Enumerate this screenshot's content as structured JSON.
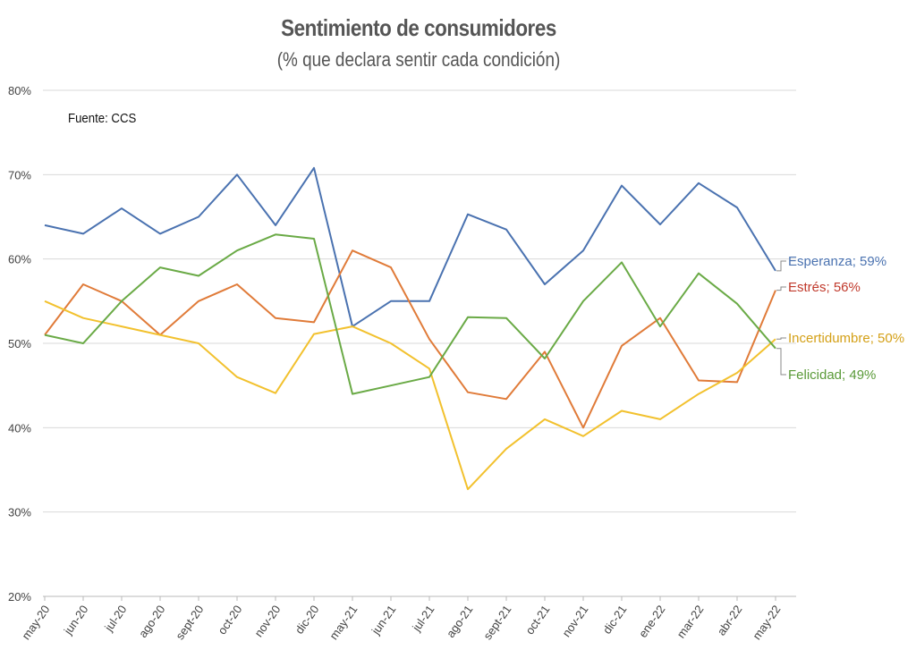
{
  "chart_data": {
    "type": "line",
    "title": "Sentimiento de consumidores",
    "subtitle": "(% que declara sentir cada condición)",
    "source": "Fuente: CCS",
    "xlabel": "",
    "ylabel": "",
    "ylim": [
      20,
      80
    ],
    "yticks": [
      "20%",
      "30%",
      "40%",
      "50%",
      "60%",
      "70%",
      "80%"
    ],
    "grid": true,
    "legend": "none",
    "categories": [
      "may-20",
      "jun-20",
      "jul-20",
      "ago-20",
      "sept-20",
      "oct-20",
      "nov-20",
      "dic-20",
      "may-21",
      "jun-21",
      "jul-21",
      "ago-21",
      "sept-21",
      "oct-21",
      "nov-21",
      "dic-21",
      "ene-22",
      "mar-22",
      "abr-22",
      "may-22"
    ],
    "series": [
      {
        "name": "Esperanza",
        "end_label": "Esperanza; 59%",
        "color": "#4a72b0",
        "label_color": "#4a72b0",
        "values": [
          64,
          63,
          66,
          63,
          65,
          70,
          64,
          70.8,
          52,
          55,
          55,
          65.3,
          63.5,
          57,
          61,
          68.7,
          64.1,
          69,
          66.1,
          58.6
        ]
      },
      {
        "name": "Estrés",
        "end_label": "Estrés; 56%",
        "color": "#e07b39",
        "label_color": "#c0392b",
        "values": [
          51,
          57,
          55,
          51,
          55,
          57,
          53,
          52.5,
          61,
          59,
          50.5,
          44.2,
          43.4,
          49,
          40,
          49.7,
          53,
          45.6,
          45.4,
          56.3
        ]
      },
      {
        "name": "Incertidumbre",
        "end_label": "Incertidumbre; 50%",
        "color": "#f2c12e",
        "label_color": "#d4a017",
        "values": [
          55,
          53,
          52,
          51,
          50,
          46,
          44.1,
          51.1,
          52,
          50,
          47,
          32.7,
          37.5,
          41,
          39,
          42,
          41,
          44,
          46.5,
          50.5
        ]
      },
      {
        "name": "Felicidad",
        "end_label": "Felicidad; 49%",
        "color": "#6aaa46",
        "label_color": "#5a9a38",
        "values": [
          51,
          50,
          55,
          59,
          58,
          61,
          62.9,
          62.4,
          44,
          45,
          46,
          53.1,
          53,
          48.2,
          55,
          59.6,
          52,
          58.3,
          54.7,
          49.4
        ]
      }
    ]
  }
}
